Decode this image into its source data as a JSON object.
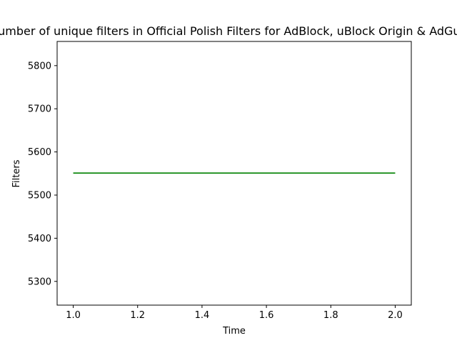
{
  "chart_data": {
    "type": "line",
    "title": "Number of unique filters in Official Polish Filters for AdBlock, uBlock Origin & AdGuard",
    "xlabel": "Time",
    "ylabel": "Filters",
    "x": [
      1.0,
      2.0
    ],
    "series": [
      {
        "values": [
          5551,
          5551
        ],
        "color": "#008000"
      }
    ],
    "xlim": [
      0.95,
      2.05
    ],
    "ylim": [
      5245,
      5856
    ],
    "xticks": [
      1.0,
      1.2,
      1.4,
      1.6,
      1.8,
      2.0
    ],
    "xtick_labels": [
      "1.0",
      "1.2",
      "1.4",
      "1.6",
      "1.8",
      "2.0"
    ],
    "yticks": [
      5300,
      5400,
      5500,
      5600,
      5700,
      5800
    ],
    "ytick_labels": [
      "5300",
      "5400",
      "5500",
      "5600",
      "5700",
      "5800"
    ],
    "grid": false,
    "legend": false
  }
}
